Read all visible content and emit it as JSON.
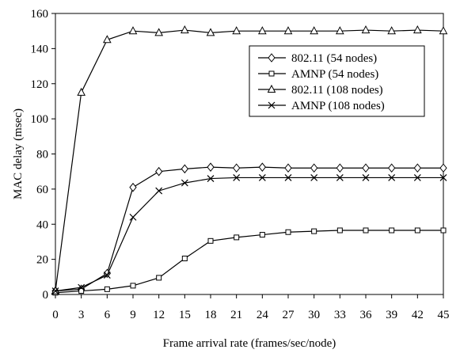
{
  "chart_data": {
    "type": "line",
    "title": "",
    "xlabel": "Frame arrival rate (frames/sec/node)",
    "ylabel": "MAC delay (msec)",
    "xlim": [
      0,
      45
    ],
    "ylim": [
      0,
      160
    ],
    "x": [
      0,
      3,
      6,
      9,
      12,
      15,
      18,
      21,
      24,
      27,
      30,
      33,
      36,
      39,
      42,
      45
    ],
    "xticks": [
      "0",
      "3",
      "6",
      "9",
      "12",
      "15",
      "18",
      "21",
      "24",
      "27",
      "30",
      "33",
      "36",
      "39",
      "42",
      "45"
    ],
    "yticks": [
      "0",
      "20",
      "40",
      "60",
      "80",
      "100",
      "120",
      "140",
      "160"
    ],
    "grid": false,
    "legend_position": "top-right",
    "series": [
      {
        "name": "802.11 (54 nodes)",
        "marker": "diamond",
        "values": [
          2,
          3,
          12,
          61,
          70,
          71.5,
          72.5,
          72,
          72.5,
          72,
          72,
          72,
          72,
          72,
          72,
          72
        ]
      },
      {
        "name": "AMNP (54 nodes)",
        "marker": "square",
        "values": [
          1,
          2,
          3,
          5,
          9.5,
          20.5,
          30.5,
          32.5,
          34,
          35.5,
          36,
          36.5,
          36.5,
          36.5,
          36.5,
          36.5
        ]
      },
      {
        "name": "802.11 (108 nodes)",
        "marker": "triangle",
        "values": [
          2,
          115,
          145,
          150,
          149,
          150.5,
          149,
          150,
          150,
          150,
          150,
          150,
          150.5,
          150,
          150.5,
          150
        ]
      },
      {
        "name": "AMNP (108 nodes)",
        "marker": "x",
        "values": [
          2,
          4,
          11,
          44,
          59,
          63.5,
          66,
          66.5,
          66.5,
          66.5,
          66.5,
          66.5,
          66.5,
          66.5,
          66.5,
          66.5
        ]
      }
    ]
  }
}
